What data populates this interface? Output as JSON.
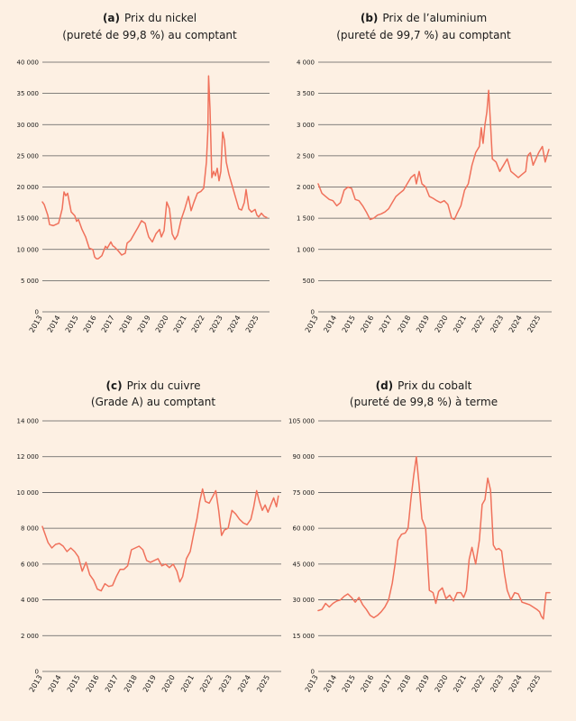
{
  "colors": {
    "background": "#fdf0e3",
    "series": "#f0715b",
    "grid": "#5a5a5a",
    "text": "#1a1a1a"
  },
  "chart_data": [
    {
      "type": "line",
      "panel": "(a)",
      "title_lines": [
        "Prix du nickel",
        "(pureté de 99,8 %) au comptant"
      ],
      "ylim": [
        0,
        40000
      ],
      "yticks": [
        0,
        5000,
        10000,
        15000,
        20000,
        25000,
        30000,
        35000,
        40000
      ],
      "ytick_labels": [
        "0",
        "5 000",
        "10 000",
        "15 000",
        "20 000",
        "25 000",
        "30 000",
        "35 000",
        "40 000"
      ],
      "xlim": [
        2013,
        2025.6
      ],
      "xticks": [
        2013,
        2014,
        2015,
        2016,
        2017,
        2018,
        2019,
        2020,
        2021,
        2022,
        2023,
        2024,
        2025
      ],
      "xtick_labels": [
        "2013",
        "2014",
        "2015",
        "2016",
        "2017",
        "2018",
        "2019",
        "2020",
        "2021",
        "2022",
        "2023",
        "2024",
        "2025"
      ],
      "grid": true,
      "series": [
        {
          "x": [
            2013.0,
            2013.1,
            2013.3,
            2013.4,
            2013.6,
            2013.9,
            2014.1,
            2014.2,
            2014.3,
            2014.4,
            2014.6,
            2014.8,
            2014.9,
            2015.0,
            2015.2,
            2015.4,
            2015.6,
            2015.8,
            2015.9,
            2016.0,
            2016.1,
            2016.3,
            2016.5,
            2016.6,
            2016.8,
            2016.9,
            2017.0,
            2017.2,
            2017.4,
            2017.6,
            2017.7,
            2017.9,
            2018.1,
            2018.3,
            2018.5,
            2018.7,
            2018.8,
            2018.9,
            2019.1,
            2019.3,
            2019.5,
            2019.6,
            2019.75,
            2019.9,
            2020.05,
            2020.2,
            2020.35,
            2020.5,
            2020.7,
            2020.9,
            2021.1,
            2021.25,
            2021.4,
            2021.6,
            2021.8,
            2021.95,
            2022.1,
            2022.18,
            2022.22,
            2022.3,
            2022.4,
            2022.5,
            2022.6,
            2022.7,
            2022.8,
            2022.9,
            2023.0,
            2023.1,
            2023.2,
            2023.35,
            2023.5,
            2023.7,
            2023.9,
            2024.05,
            2024.2,
            2024.3,
            2024.45,
            2024.6,
            2024.8,
            2024.9,
            2025.0,
            2025.15,
            2025.3,
            2025.45
          ],
          "y": [
            17600,
            17200,
            15500,
            14000,
            13800,
            14200,
            16500,
            19200,
            18600,
            19000,
            16000,
            15400,
            14500,
            14800,
            13200,
            12000,
            10200,
            10000,
            8800,
            8500,
            8500,
            9000,
            10500,
            10200,
            11200,
            10600,
            10400,
            9800,
            9100,
            9400,
            11000,
            11500,
            12500,
            13500,
            14600,
            14200,
            13000,
            12000,
            11200,
            12500,
            13200,
            12000,
            13000,
            17600,
            16500,
            12500,
            11600,
            12300,
            14800,
            16500,
            18500,
            16200,
            17500,
            19000,
            19300,
            19800,
            24000,
            29000,
            37800,
            32500,
            21500,
            22500,
            21800,
            23000,
            21000,
            22500,
            28800,
            27500,
            24000,
            22000,
            20500,
            18500,
            16500,
            16300,
            17500,
            19600,
            16500,
            16000,
            16400,
            15500,
            15200,
            15800,
            15300,
            15100
          ]
        }
      ]
    },
    {
      "type": "line",
      "panel": "(b)",
      "title_lines": [
        "Prix de l’aluminium",
        "(pureté de 99,7 %) au comptant"
      ],
      "ylim": [
        0,
        4000
      ],
      "yticks": [
        0,
        500,
        1000,
        1500,
        2000,
        2500,
        3000,
        3500,
        4000
      ],
      "ytick_labels": [
        "0",
        "500",
        "1 000",
        "1 500",
        "2 000",
        "2 500",
        "3 000",
        "3 500",
        "4 000"
      ],
      "xlim": [
        2013,
        2025.6
      ],
      "xticks": [
        2013,
        2014,
        2015,
        2016,
        2017,
        2018,
        2019,
        2020,
        2021,
        2022,
        2023,
        2024,
        2025
      ],
      "xtick_labels": [
        "2013",
        "2014",
        "2015",
        "2016",
        "2017",
        "2018",
        "2019",
        "2020",
        "2021",
        "2022",
        "2023",
        "2024",
        "2025"
      ],
      "grid": true,
      "series": [
        {
          "x": [
            2013.0,
            2013.2,
            2013.4,
            2013.6,
            2013.8,
            2014.0,
            2014.2,
            2014.4,
            2014.6,
            2014.8,
            2015.0,
            2015.2,
            2015.4,
            2015.6,
            2015.8,
            2016.0,
            2016.2,
            2016.4,
            2016.6,
            2016.8,
            2017.0,
            2017.2,
            2017.4,
            2017.6,
            2017.8,
            2018.0,
            2018.2,
            2018.3,
            2018.45,
            2018.6,
            2018.8,
            2019.0,
            2019.2,
            2019.4,
            2019.6,
            2019.8,
            2020.0,
            2020.2,
            2020.35,
            2020.5,
            2020.7,
            2020.9,
            2021.1,
            2021.3,
            2021.5,
            2021.7,
            2021.8,
            2021.9,
            2022.0,
            2022.1,
            2022.2,
            2022.3,
            2022.4,
            2022.6,
            2022.8,
            2023.0,
            2023.2,
            2023.4,
            2023.6,
            2023.8,
            2024.0,
            2024.2,
            2024.3,
            2024.45,
            2024.6,
            2024.75,
            2024.9,
            2025.0,
            2025.1,
            2025.25,
            2025.45
          ],
          "y": [
            2050,
            1900,
            1850,
            1800,
            1780,
            1700,
            1750,
            1950,
            2000,
            1980,
            1800,
            1780,
            1700,
            1600,
            1480,
            1500,
            1550,
            1570,
            1600,
            1650,
            1750,
            1850,
            1900,
            1950,
            2050,
            2150,
            2200,
            2050,
            2250,
            2050,
            2000,
            1850,
            1820,
            1780,
            1750,
            1780,
            1720,
            1500,
            1480,
            1580,
            1700,
            1950,
            2050,
            2350,
            2550,
            2650,
            2950,
            2700,
            3000,
            3200,
            3550,
            3000,
            2450,
            2400,
            2250,
            2350,
            2450,
            2250,
            2200,
            2150,
            2200,
            2250,
            2500,
            2550,
            2350,
            2450,
            2550,
            2600,
            2650,
            2400,
            2600
          ]
        }
      ]
    },
    {
      "type": "line",
      "panel": "(c)",
      "title_lines": [
        "Prix du cuivre",
        "(Grade A) au comptant"
      ],
      "ylim": [
        0,
        14000
      ],
      "yticks": [
        0,
        2000,
        4000,
        6000,
        8000,
        10000,
        12000,
        14000
      ],
      "ytick_labels": [
        "0",
        "2 000",
        "4 000",
        "6 000",
        "8 000",
        "10 000",
        "12 000",
        "14 000"
      ],
      "xlim": [
        2013,
        2025.6
      ],
      "xticks": [
        2013,
        2014,
        2015,
        2016,
        2017,
        2018,
        2019,
        2020,
        2021,
        2022,
        2023,
        2024,
        2025
      ],
      "xtick_labels": [
        "2013",
        "2014",
        "2015",
        "2016",
        "2017",
        "2018",
        "2019",
        "2020",
        "2021",
        "2022",
        "2023",
        "2024",
        "2025"
      ],
      "grid": true,
      "series": [
        {
          "x": [
            2013.0,
            2013.1,
            2013.3,
            2013.5,
            2013.7,
            2013.9,
            2014.1,
            2014.3,
            2014.5,
            2014.7,
            2014.9,
            2015.1,
            2015.3,
            2015.5,
            2015.7,
            2015.9,
            2016.1,
            2016.3,
            2016.5,
            2016.7,
            2016.9,
            2017.1,
            2017.3,
            2017.5,
            2017.7,
            2017.9,
            2018.1,
            2018.3,
            2018.5,
            2018.7,
            2018.9,
            2019.1,
            2019.3,
            2019.5,
            2019.7,
            2019.9,
            2020.1,
            2020.25,
            2020.4,
            2020.6,
            2020.8,
            2021.0,
            2021.15,
            2021.3,
            2021.45,
            2021.6,
            2021.8,
            2022.0,
            2022.15,
            2022.3,
            2022.45,
            2022.6,
            2022.8,
            2023.0,
            2023.2,
            2023.4,
            2023.6,
            2023.8,
            2024.0,
            2024.15,
            2024.3,
            2024.45,
            2024.6,
            2024.75,
            2024.9,
            2025.05,
            2025.2,
            2025.35,
            2025.45
          ],
          "y": [
            8100,
            7800,
            7200,
            6900,
            7100,
            7150,
            7000,
            6700,
            6900,
            6700,
            6400,
            5600,
            6100,
            5400,
            5100,
            4600,
            4500,
            4900,
            4750,
            4800,
            5300,
            5700,
            5700,
            5900,
            6800,
            6900,
            7000,
            6800,
            6200,
            6100,
            6200,
            6300,
            5900,
            6000,
            5800,
            6000,
            5600,
            5000,
            5300,
            6300,
            6700,
            7800,
            8500,
            9500,
            10200,
            9500,
            9400,
            9800,
            10100,
            9000,
            7600,
            7900,
            8000,
            9000,
            8800,
            8500,
            8300,
            8200,
            8500,
            9200,
            10100,
            9500,
            9000,
            9300,
            8900,
            9300,
            9700,
            9200,
            9800
          ]
        }
      ]
    },
    {
      "type": "line",
      "panel": "(d)",
      "title_lines": [
        "Prix du cobalt",
        "(pureté de 99,8 %) à terme"
      ],
      "ylim": [
        0,
        105000
      ],
      "yticks": [
        0,
        15000,
        30000,
        45000,
        60000,
        75000,
        90000,
        105000
      ],
      "ytick_labels": [
        "0",
        "15 000",
        "30 000",
        "45 000",
        "60 000",
        "75 000",
        "90 000",
        "105 000"
      ],
      "xlim": [
        2013,
        2025.6
      ],
      "xticks": [
        2013,
        2014,
        2015,
        2016,
        2017,
        2018,
        2019,
        2020,
        2021,
        2022,
        2023,
        2024,
        2025
      ],
      "xtick_labels": [
        "2013",
        "2014",
        "2015",
        "2016",
        "2017",
        "2018",
        "2019",
        "2020",
        "2021",
        "2022",
        "2023",
        "2024",
        "2025"
      ],
      "grid": true,
      "series": [
        {
          "x": [
            2013.0,
            2013.2,
            2013.4,
            2013.6,
            2013.8,
            2014.0,
            2014.2,
            2014.4,
            2014.6,
            2014.8,
            2015.0,
            2015.2,
            2015.4,
            2015.6,
            2015.8,
            2016.0,
            2016.2,
            2016.4,
            2016.6,
            2016.8,
            2017.0,
            2017.15,
            2017.3,
            2017.5,
            2017.7,
            2017.85,
            2018.0,
            2018.15,
            2018.3,
            2018.45,
            2018.6,
            2018.8,
            2019.0,
            2019.2,
            2019.35,
            2019.5,
            2019.7,
            2019.9,
            2020.1,
            2020.3,
            2020.5,
            2020.7,
            2020.85,
            2021.0,
            2021.15,
            2021.3,
            2021.5,
            2021.7,
            2021.85,
            2022.0,
            2022.15,
            2022.3,
            2022.45,
            2022.6,
            2022.75,
            2022.9,
            2023.05,
            2023.2,
            2023.4,
            2023.6,
            2023.8,
            2024.0,
            2024.2,
            2024.4,
            2024.6,
            2024.8,
            2024.95,
            2025.05,
            2025.15,
            2025.3,
            2025.5
          ],
          "y": [
            25500,
            26000,
            28500,
            27000,
            28500,
            29500,
            30000,
            31500,
            32500,
            31000,
            29000,
            31000,
            28000,
            26000,
            23500,
            22500,
            23500,
            25000,
            27000,
            30000,
            37000,
            45000,
            55000,
            57500,
            58000,
            60000,
            72000,
            82000,
            90000,
            78000,
            64000,
            60000,
            34000,
            33000,
            28500,
            33500,
            35000,
            30500,
            32000,
            29500,
            33000,
            33000,
            31000,
            34000,
            47000,
            52000,
            45000,
            55000,
            70000,
            72000,
            81000,
            76000,
            53000,
            51000,
            51500,
            50500,
            41000,
            34000,
            30000,
            33000,
            32500,
            29000,
            28500,
            28000,
            27000,
            26000,
            25000,
            23000,
            22000,
            33000,
            33000
          ]
        }
      ]
    }
  ]
}
